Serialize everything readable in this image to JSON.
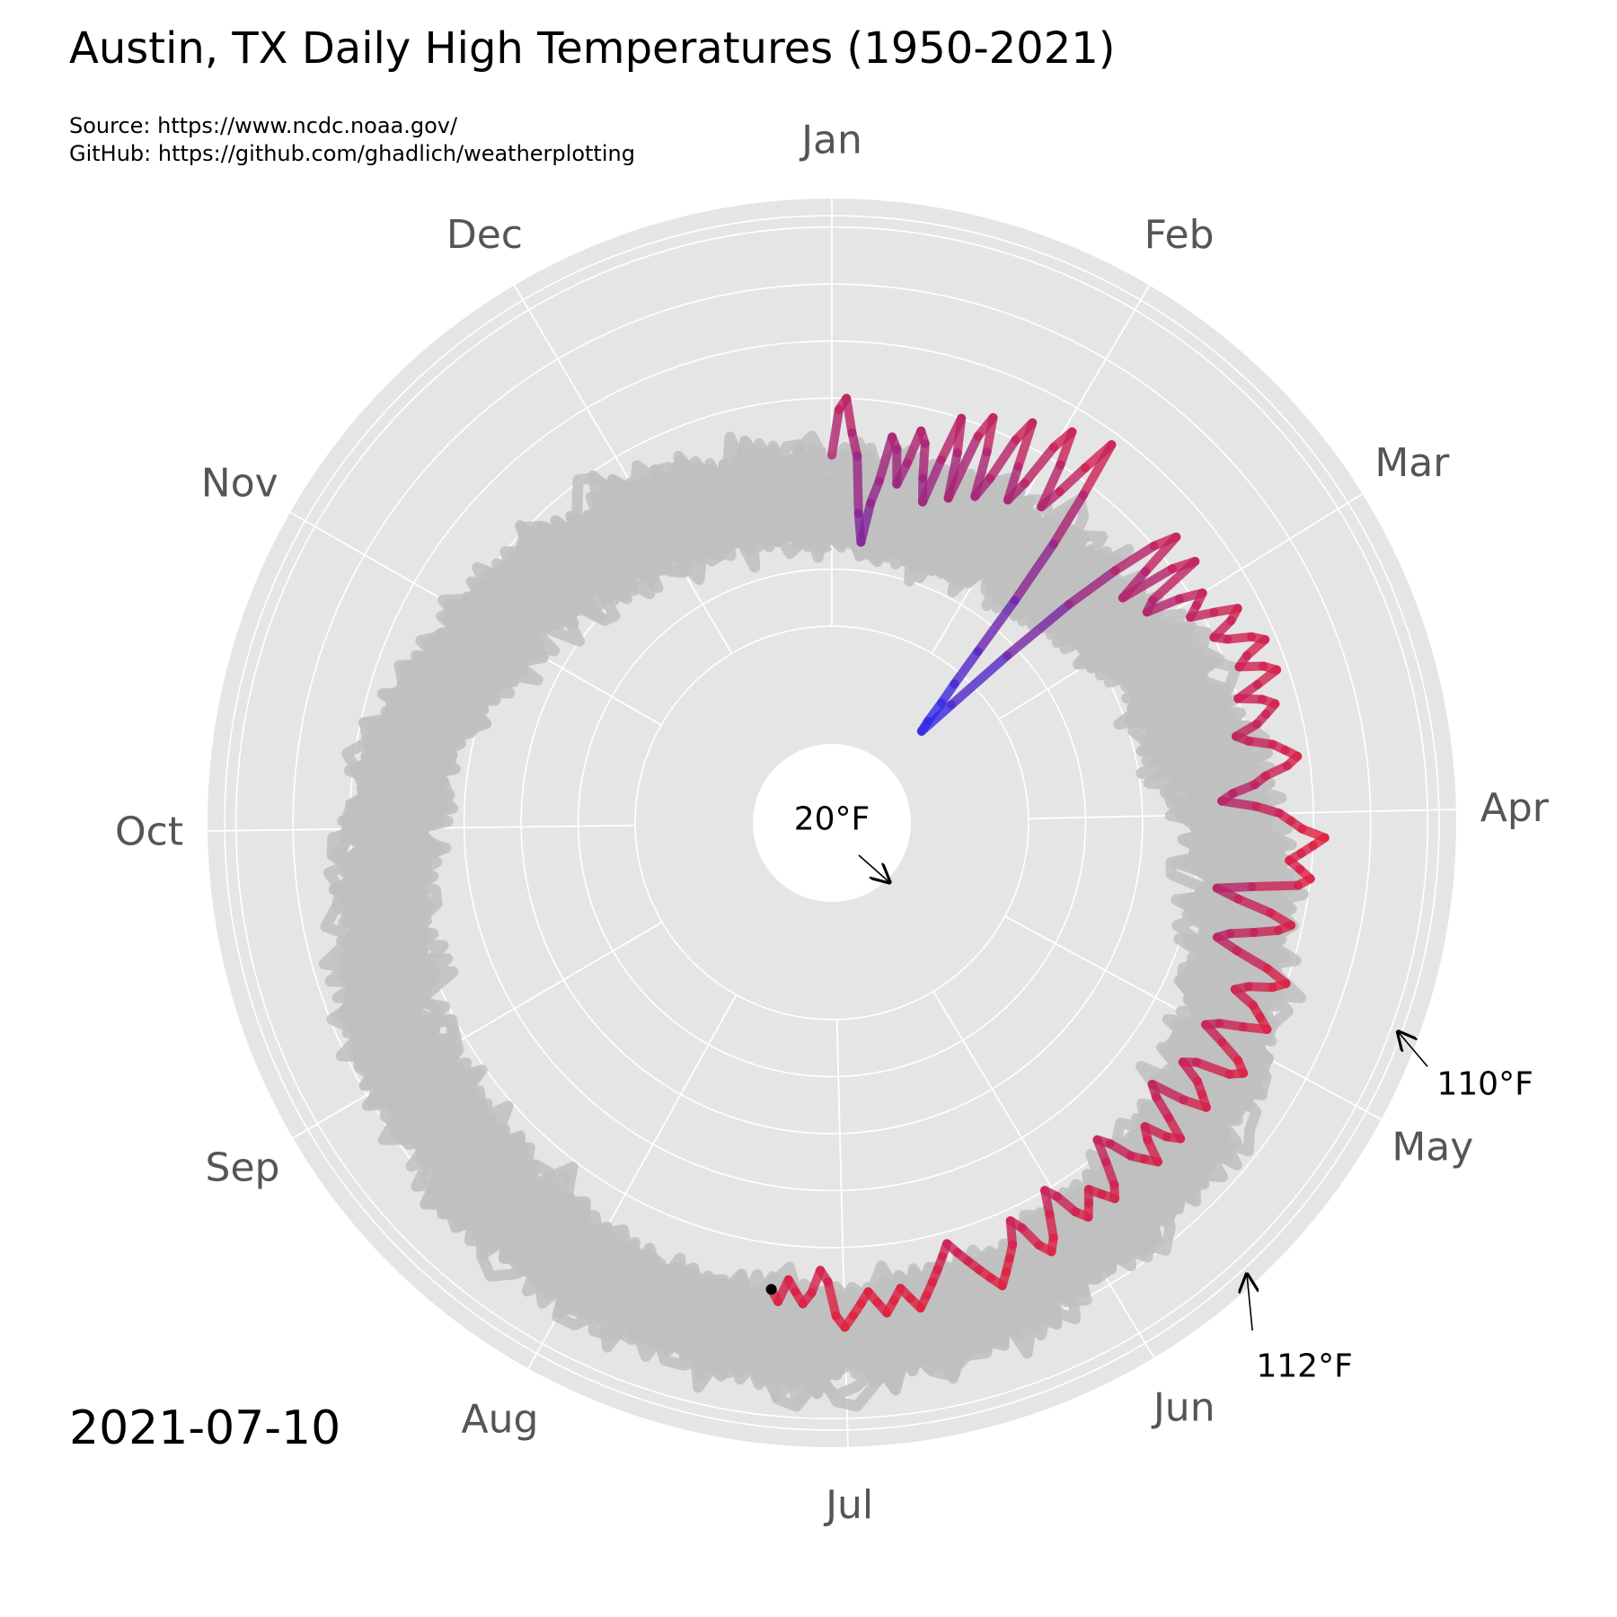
{
  "header": {
    "title": "Austin, TX Daily High Temperatures (1950-2021)",
    "source": "Source: https://www.ncdc.noaa.gov/",
    "github": "GitHub: https://github.com/ghadlich/weatherplotting"
  },
  "date_stamp": "2021-07-10",
  "chart_data": {
    "type": "line",
    "projection": "polar",
    "direction": "clockwise",
    "start_angle": "top",
    "months": [
      "Jan",
      "Feb",
      "Mar",
      "Apr",
      "May",
      "Jun",
      "Jul",
      "Aug",
      "Sep",
      "Oct",
      "Nov",
      "Dec"
    ],
    "radial_range": [
      20,
      115
    ],
    "grid": true,
    "history_color": "#bfbfbf",
    "color_cold": "#2a2af0",
    "color_hot": "#e02040",
    "record_low_label": "20°F",
    "record_highs": [
      {
        "label": "110°F",
        "day": 113,
        "value": 110
      },
      {
        "label": "112°F",
        "day": 140,
        "value": 112
      }
    ],
    "current_year": {
      "name": "2021",
      "points": [
        [
          1,
          70
        ],
        [
          2,
          78
        ],
        [
          3,
          80
        ],
        [
          4,
          74
        ],
        [
          5,
          70
        ],
        [
          6,
          60
        ],
        [
          7,
          55
        ],
        [
          8,
          62
        ],
        [
          9,
          66
        ],
        [
          10,
          74
        ],
        [
          11,
          72
        ],
        [
          12,
          66
        ],
        [
          13,
          70
        ],
        [
          14,
          76
        ],
        [
          15,
          74
        ],
        [
          16,
          68
        ],
        [
          17,
          64
        ],
        [
          18,
          72
        ],
        [
          19,
          80
        ],
        [
          20,
          74
        ],
        [
          21,
          66
        ],
        [
          22,
          78
        ],
        [
          23,
          82
        ],
        [
          24,
          76
        ],
        [
          25,
          68
        ],
        [
          26,
          72
        ],
        [
          27,
          80
        ],
        [
          28,
          84
        ],
        [
          29,
          76
        ],
        [
          30,
          70
        ],
        [
          31,
          74
        ],
        [
          32,
          82
        ],
        [
          33,
          86
        ],
        [
          34,
          80
        ],
        [
          35,
          72
        ],
        [
          36,
          76
        ],
        [
          37,
          82
        ],
        [
          38,
          88
        ],
        [
          39,
          78
        ],
        [
          40,
          68
        ],
        [
          41,
          56
        ],
        [
          42,
          45
        ],
        [
          43,
          38
        ],
        [
          44,
          34
        ],
        [
          45,
          30
        ],
        [
          46,
          28
        ],
        [
          47,
          35
        ],
        [
          48,
          48
        ],
        [
          49,
          62
        ],
        [
          50,
          72
        ],
        [
          51,
          80
        ],
        [
          52,
          84
        ],
        [
          53,
          76
        ],
        [
          54,
          70
        ],
        [
          55,
          80
        ],
        [
          56,
          84
        ],
        [
          57,
          74
        ],
        [
          58,
          72
        ],
        [
          59,
          78
        ],
        [
          60,
          82
        ],
        [
          61,
          80
        ],
        [
          62,
          78
        ],
        [
          63,
          82
        ],
        [
          64,
          86
        ],
        [
          65,
          84
        ],
        [
          66,
          80
        ],
        [
          67,
          82
        ],
        [
          68,
          86
        ],
        [
          69,
          88
        ],
        [
          70,
          84
        ],
        [
          71,
          82
        ],
        [
          72,
          86
        ],
        [
          73,
          88
        ],
        [
          74,
          84
        ],
        [
          75,
          80
        ],
        [
          76,
          84
        ],
        [
          77,
          86
        ],
        [
          78,
          84
        ],
        [
          79,
          82
        ],
        [
          80,
          78
        ],
        [
          81,
          80
        ],
        [
          82,
          84
        ],
        [
          83,
          86
        ],
        [
          84,
          88
        ],
        [
          85,
          86
        ],
        [
          86,
          82
        ],
        [
          87,
          80
        ],
        [
          88,
          76
        ],
        [
          89,
          74
        ],
        [
          90,
          80
        ],
        [
          91,
          84
        ],
        [
          92,
          86
        ],
        [
          93,
          88
        ],
        [
          94,
          92
        ],
        [
          95,
          90
        ],
        [
          96,
          88
        ],
        [
          97,
          86
        ],
        [
          98,
          88
        ],
        [
          99,
          90
        ],
        [
          100,
          88
        ],
        [
          101,
          80
        ],
        [
          102,
          74
        ],
        [
          103,
          78
        ],
        [
          104,
          84
        ],
        [
          105,
          88
        ],
        [
          106,
          86
        ],
        [
          107,
          82
        ],
        [
          108,
          78
        ],
        [
          109,
          76
        ],
        [
          110,
          80
        ],
        [
          111,
          86
        ],
        [
          112,
          90
        ],
        [
          113,
          88
        ],
        [
          114,
          84
        ],
        [
          115,
          82
        ],
        [
          116,
          86
        ],
        [
          117,
          88
        ],
        [
          118,
          90
        ],
        [
          119,
          86
        ],
        [
          120,
          82
        ],
        [
          121,
          80
        ],
        [
          122,
          84
        ],
        [
          123,
          88
        ],
        [
          124,
          90
        ],
        [
          125,
          88
        ],
        [
          126,
          82
        ],
        [
          127,
          80
        ],
        [
          128,
          84
        ],
        [
          129,
          86
        ],
        [
          130,
          88
        ],
        [
          131,
          84
        ],
        [
          132,
          78
        ],
        [
          133,
          80
        ],
        [
          134,
          84
        ],
        [
          135,
          88
        ],
        [
          136,
          86
        ],
        [
          137,
          82
        ],
        [
          138,
          84
        ],
        [
          139,
          88
        ],
        [
          140,
          86
        ],
        [
          141,
          84
        ],
        [
          142,
          80
        ],
        [
          143,
          78
        ],
        [
          144,
          82
        ],
        [
          145,
          86
        ],
        [
          146,
          88
        ],
        [
          147,
          86
        ],
        [
          148,
          84
        ],
        [
          149,
          86
        ],
        [
          150,
          88
        ],
        [
          151,
          86
        ],
        [
          152,
          82
        ],
        [
          153,
          80
        ],
        [
          154,
          84
        ],
        [
          155,
          88
        ],
        [
          156,
          90
        ],
        [
          157,
          88
        ],
        [
          158,
          84
        ],
        [
          159,
          82
        ],
        [
          160,
          86
        ],
        [
          161,
          88
        ],
        [
          162,
          90
        ],
        [
          163,
          92
        ],
        [
          164,
          90
        ],
        [
          165,
          88
        ],
        [
          166,
          86
        ],
        [
          167,
          84
        ],
        [
          168,
          82
        ],
        [
          169,
          84
        ],
        [
          170,
          86
        ],
        [
          171,
          88
        ],
        [
          172,
          90
        ],
        [
          173,
          92
        ],
        [
          174,
          90
        ],
        [
          175,
          88
        ],
        [
          176,
          90
        ],
        [
          177,
          92
        ],
        [
          178,
          90
        ],
        [
          179,
          88
        ],
        [
          180,
          90
        ],
        [
          181,
          92
        ],
        [
          182,
          94
        ],
        [
          183,
          92
        ],
        [
          184,
          86
        ],
        [
          185,
          84
        ],
        [
          186,
          88
        ],
        [
          187,
          90
        ],
        [
          188,
          88
        ],
        [
          189,
          86
        ],
        [
          190,
          90
        ],
        [
          191,
          88
        ]
      ]
    }
  }
}
